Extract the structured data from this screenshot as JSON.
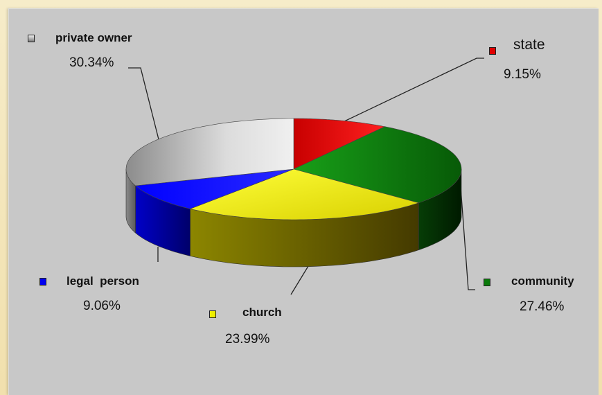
{
  "chart_data": {
    "type": "pie",
    "slices": [
      {
        "name": "state",
        "value": 9.15,
        "label": "9.15%",
        "color": "#e10000"
      },
      {
        "name": "community",
        "value": 27.46,
        "label": "27.46%",
        "color": "#0e7a0e"
      },
      {
        "name": "church",
        "value": 23.99,
        "label": "23.99%",
        "color": "#e6e600"
      },
      {
        "name": "legal  person",
        "value": 9.06,
        "label": "9.06%",
        "color": "#0000ee"
      },
      {
        "name": "private owner",
        "value": 30.34,
        "label": "30.34%",
        "color": "#bdbdbd"
      }
    ],
    "style": "3d",
    "legend": "labels-beside-slices"
  }
}
